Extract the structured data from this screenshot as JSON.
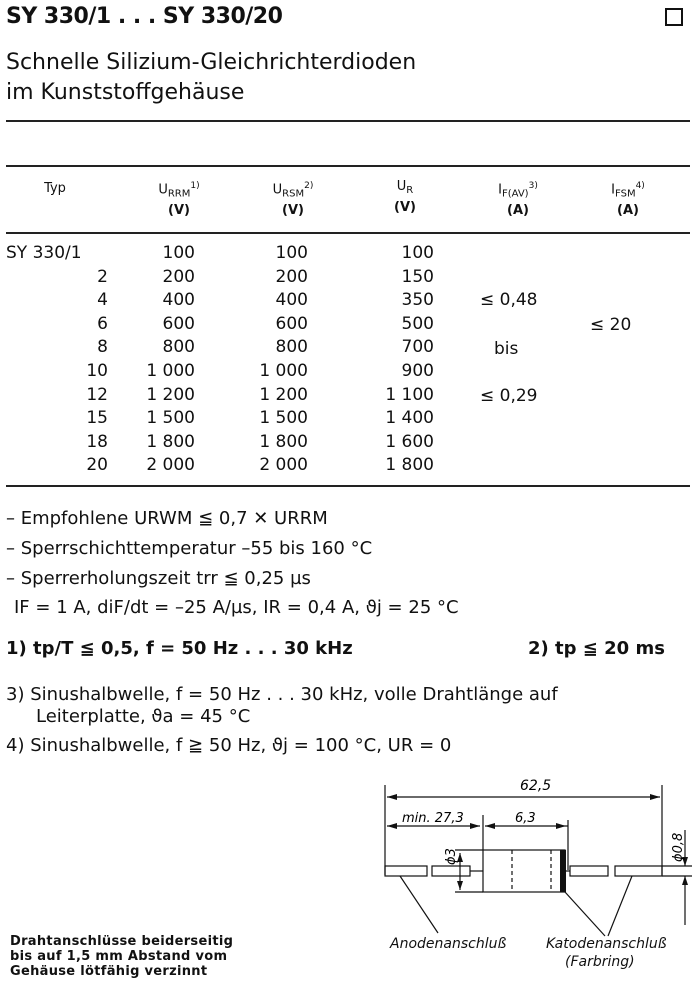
{
  "header": {
    "title": "SY 330/1 . . . SY 330/20",
    "subtitle_line1": "Schnelle Silizium-Gleichrichterdioden",
    "subtitle_line2": "im Kunststoffgehäuse"
  },
  "table": {
    "columns": [
      {
        "label": "Typ",
        "unit": ""
      },
      {
        "label": "URRM",
        "sub": "RRM",
        "note": "1)",
        "unit": "(V)"
      },
      {
        "label": "URSM",
        "sub": "RSM",
        "note": "2)",
        "unit": "(V)"
      },
      {
        "label": "UR",
        "sub": "R",
        "note": "",
        "unit": "(V)"
      },
      {
        "label": "IF(AV)",
        "sub": "F(AV)",
        "note": "3)",
        "unit": "(A)"
      },
      {
        "label": "IFSM",
        "sub": "FSM",
        "note": "4)",
        "unit": "(A)"
      }
    ],
    "rows": [
      {
        "typ": "SY 330/1",
        "urrm": "100",
        "ursm": "100",
        "ur": "100"
      },
      {
        "typ": "2",
        "urrm": "200",
        "ursm": "200",
        "ur": "150"
      },
      {
        "typ": "4",
        "urrm": "400",
        "ursm": "400",
        "ur": "350"
      },
      {
        "typ": "6",
        "urrm": "600",
        "ursm": "600",
        "ur": "500"
      },
      {
        "typ": "8",
        "urrm": "800",
        "ursm": "800",
        "ur": "700"
      },
      {
        "typ": "10",
        "urrm": "1 000",
        "ursm": "1 000",
        "ur": "900"
      },
      {
        "typ": "12",
        "urrm": "1 200",
        "ursm": "1 200",
        "ur": "1 100"
      },
      {
        "typ": "15",
        "urrm": "1 500",
        "ursm": "1 500",
        "ur": "1 400"
      },
      {
        "typ": "18",
        "urrm": "1 800",
        "ursm": "1 800",
        "ur": "1 600"
      },
      {
        "typ": "20",
        "urrm": "2 000",
        "ursm": "2 000",
        "ur": "1 800"
      }
    ],
    "ifav": {
      "max": "≤ 0,48",
      "bis": "bis",
      "min": "≤ 0,29"
    },
    "ifsm": "≤ 20"
  },
  "notes": {
    "n1": "– Empfohlene URWM ≦ 0,7 ✕ URRM",
    "n2": "– Sperrschichttemperatur –55 bis 160 °C",
    "n3": "– Sperrerholungszeit trr ≦ 0,25 µs",
    "n3b": "IF = 1 A, diF/dt = –25 A/µs, IR = 0,4 A, ϑj = 25 °C",
    "f1": "1) tp/T ≦ 0,5, f = 50 Hz . . . 30 kHz",
    "f2": "2) tp ≦ 20 ms",
    "f3a": "3) Sinushalbwelle, f = 50 Hz . . . 30 kHz, volle Drahtlänge auf",
    "f3b": "Leiterplatte, ϑa = 45 °C",
    "f4": "4) Sinushalbwelle, f ≧ 50 Hz, ϑj = 100 °C, UR = 0"
  },
  "drawing": {
    "dim_total": "62,5",
    "dim_lead": "min. 27,3",
    "dim_body": "6,3",
    "dim_dia": "ϕ3",
    "dim_wire": "ϕ0,8",
    "anode": "Anodenanschluß",
    "cathode": "Katodenanschluß",
    "cathode_note": "(Farbring)",
    "footnote": [
      "Drahtanschlüsse beiderseitig",
      "bis auf 1,5 mm Abstand vom",
      "Gehäuse lötfähig verzinnt"
    ]
  }
}
